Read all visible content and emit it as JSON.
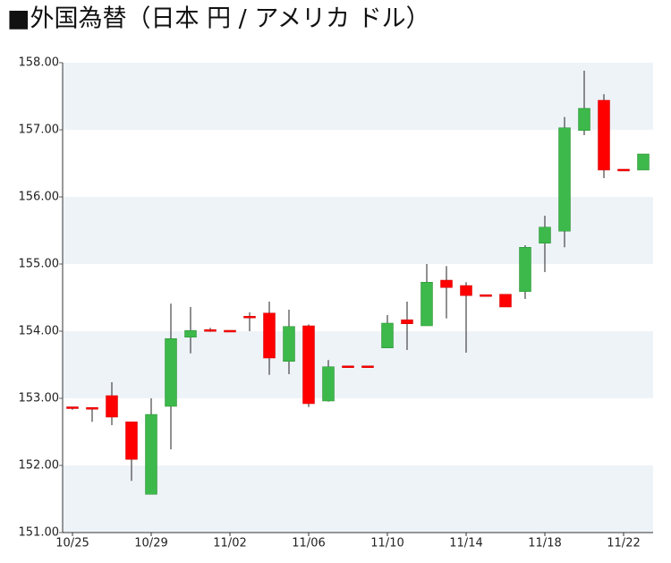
{
  "chart_data": {
    "type": "candlestick",
    "title": "■外国為替（日本 円 / アメリカ ドル）",
    "categories": [
      "10/25",
      null,
      null,
      null,
      "10/29",
      null,
      null,
      null,
      "11/02",
      null,
      null,
      null,
      "11/06",
      null,
      null,
      null,
      "11/10",
      null,
      null,
      null,
      "11/14",
      null,
      null,
      null,
      "11/18",
      null,
      null,
      null,
      "11/22",
      null
    ],
    "open": [
      152.86,
      152.85,
      153.04,
      152.65,
      151.57,
      152.88,
      153.91,
      154.01,
      154.0,
      154.21,
      154.27,
      153.55,
      154.08,
      152.96,
      153.47,
      153.47,
      153.75,
      154.17,
      154.08,
      154.76,
      154.68,
      154.53,
      154.55,
      154.59,
      155.31,
      155.49,
      156.99,
      157.44,
      156.4,
      156.4
    ],
    "high": [
      152.87,
      152.85,
      153.24,
      152.65,
      153.0,
      154.41,
      154.36,
      154.05,
      154.0,
      154.28,
      154.44,
      154.32,
      154.1,
      153.57,
      153.47,
      153.47,
      154.24,
      154.44,
      155.0,
      154.97,
      154.73,
      154.53,
      154.55,
      155.28,
      155.72,
      157.19,
      157.88,
      157.53,
      156.4,
      156.64
    ],
    "low": [
      152.83,
      152.65,
      152.6,
      151.77,
      151.57,
      152.24,
      153.67,
      153.99,
      154.0,
      154.0,
      153.35,
      153.36,
      152.87,
      152.95,
      153.47,
      153.47,
      153.75,
      153.72,
      154.08,
      154.19,
      153.68,
      154.53,
      154.36,
      154.48,
      154.88,
      155.25,
      156.92,
      156.28,
      156.4,
      156.4
    ],
    "close": [
      152.84,
      152.84,
      152.72,
      152.09,
      152.76,
      153.89,
      154.01,
      154.0,
      154.0,
      154.21,
      153.6,
      154.07,
      152.92,
      153.47,
      153.47,
      153.47,
      154.12,
      154.11,
      154.73,
      154.65,
      154.53,
      154.53,
      154.36,
      155.25,
      155.55,
      157.03,
      157.32,
      156.4,
      156.4,
      156.64
    ],
    "up_color": "#3cb94a",
    "down_color": "#ff0000",
    "ylim": [
      151,
      158
    ],
    "yticks": [
      {
        "value": 151,
        "label": "151.00"
      },
      {
        "value": 152,
        "label": "152.00"
      },
      {
        "value": 153,
        "label": "153.00"
      },
      {
        "value": 154,
        "label": "154.00"
      },
      {
        "value": 155,
        "label": "155.00"
      },
      {
        "value": 156,
        "label": "156.00"
      },
      {
        "value": 157,
        "label": "157.00"
      },
      {
        "value": 158,
        "label": "158.00"
      }
    ]
  }
}
